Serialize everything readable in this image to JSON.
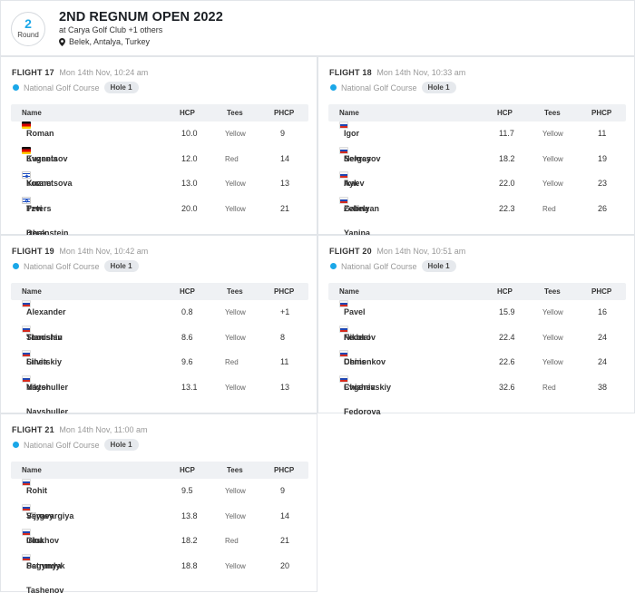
{
  "event": {
    "round_number": "2",
    "round_label": "Round",
    "title": "2ND REGNUM OPEN 2022",
    "club": "at Carya Golf Club +1 others",
    "location": "Belek, Antalya, Turkey"
  },
  "columns": {
    "name": "Name",
    "hcp": "HCP",
    "tees": "Tees",
    "phcp": "PHCP"
  },
  "flights": [
    {
      "name": "FLIGHT 17",
      "time": "Mon 14th Nov, 10:24 am",
      "course": "National Golf Course",
      "hole": "Hole 1",
      "players": [
        {
          "flag": "de",
          "name": "Roman Kuznetsov",
          "hcp": "10.0",
          "tees": "Yellow",
          "phcp": "9"
        },
        {
          "flag": "de",
          "name": "Evgenia Kuznetsova",
          "hcp": "12.0",
          "tees": "Red",
          "phcp": "14"
        },
        {
          "flag": "il",
          "name": "Yoram Tzvi Berenstein",
          "hcp": "13.0",
          "tees": "Yellow",
          "phcp": "13"
        },
        {
          "flag": "il",
          "name": "Peters Izhak",
          "hcp": "20.0",
          "tees": "Yellow",
          "phcp": "21"
        }
      ]
    },
    {
      "name": "FLIGHT 18",
      "time": "Mon 14th Nov, 10:33 am",
      "course": "National Golf Course",
      "hole": "Hole 1",
      "players": [
        {
          "flag": "ru",
          "name": "Igor Nekrasov",
          "hcp": "11.7",
          "tees": "Yellow",
          "phcp": "11"
        },
        {
          "flag": "ru",
          "name": "Sergey Ikaev",
          "hcp": "18.2",
          "tees": "Yellow",
          "phcp": "19"
        },
        {
          "flag": "ru",
          "name": "Ayk Zebelyan",
          "hcp": "22.0",
          "tees": "Yellow",
          "phcp": "23"
        },
        {
          "flag": "ru",
          "name": "Galina Yanina",
          "hcp": "22.3",
          "tees": "Red",
          "phcp": "26"
        }
      ]
    },
    {
      "name": "FLIGHT 19",
      "time": "Mon 14th Nov, 10:42 am",
      "course": "National Golf Course",
      "hole": "Hole 1",
      "players": [
        {
          "flag": "ru",
          "name": "Alexander Timoshin",
          "hcp": "0.8",
          "tees": "Yellow",
          "phcp": "+1"
        },
        {
          "flag": "ru",
          "name": "Stanislav Linetskiy",
          "hcp": "8.6",
          "tees": "Yellow",
          "phcp": "8"
        },
        {
          "flag": "ru",
          "name": "Silvia Nayshuller",
          "hcp": "9.6",
          "tees": "Red",
          "phcp": "11"
        },
        {
          "flag": "ru",
          "name": "Viktor Nayshuller",
          "hcp": "13.1",
          "tees": "Yellow",
          "phcp": "13"
        }
      ]
    },
    {
      "name": "FLIGHT 20",
      "time": "Mon 14th Nov, 10:51 am",
      "course": "National Golf Course",
      "hole": "Hole 1",
      "players": [
        {
          "flag": "ru",
          "name": "Pavel Federov",
          "hcp": "15.9",
          "tees": "Yellow",
          "phcp": "16"
        },
        {
          "flag": "ru",
          "name": "Nikolai Chinenkov",
          "hcp": "22.4",
          "tees": "Yellow",
          "phcp": "24"
        },
        {
          "flag": "ru",
          "name": "Denis Chizhevskiy",
          "hcp": "22.6",
          "tees": "Yellow",
          "phcp": "24"
        },
        {
          "flag": "ru",
          "name": "Evgenia Fedorova",
          "hcp": "32.6",
          "tees": "Red",
          "phcp": "38"
        }
      ]
    },
    {
      "name": "FLIGHT 21",
      "time": "Mon 14th Nov, 11:00 am",
      "course": "National Golf Course",
      "hole": "Hole 1",
      "players": [
        {
          "flag": "ru",
          "name": "Rohit Vijyavargiya",
          "hcp": "9.5",
          "tees": "Yellow",
          "phcp": "9"
        },
        {
          "flag": "ru",
          "name": "Sergey Glukhov",
          "hcp": "13.8",
          "tees": "Yellow",
          "phcp": "14"
        },
        {
          "flag": "ru",
          "name": "Irina Petrunya",
          "hcp": "18.2",
          "tees": "Red",
          "phcp": "21"
        },
        {
          "flag": "ru",
          "name": "Sagyndyk Tashenov",
          "hcp": "18.8",
          "tees": "Yellow",
          "phcp": "20"
        }
      ]
    }
  ],
  "colors": {
    "accent": "#1aa7e8",
    "border": "#e2e5e9",
    "header_bg": "#eff1f4"
  }
}
